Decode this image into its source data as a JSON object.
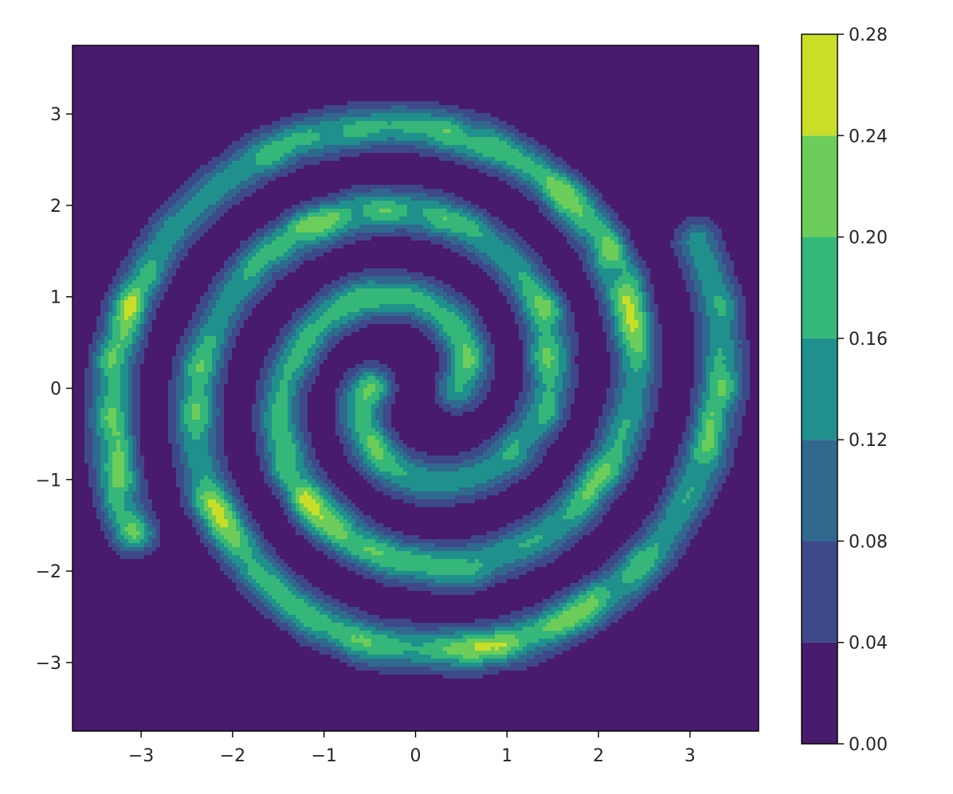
{
  "chart_data": {
    "type": "heatmap",
    "subtype": "filled-contour",
    "title": "",
    "xlabel": "",
    "ylabel": "",
    "xlim": [
      -3.75,
      3.75
    ],
    "ylim": [
      -3.75,
      3.75
    ],
    "x_ticks": [
      -3,
      -2,
      -1,
      0,
      1,
      2,
      3
    ],
    "x_tick_labels": [
      "−3",
      "−2",
      "−1",
      "0",
      "1",
      "2",
      "3"
    ],
    "y_ticks": [
      -3,
      -2,
      -1,
      0,
      1,
      2,
      3
    ],
    "y_tick_labels": [
      "−3",
      "−2",
      "−1",
      "0",
      "1",
      "2",
      "3"
    ],
    "grid": false,
    "colormap": "viridis",
    "colorbar": {
      "placement": "right",
      "levels": [
        0.0,
        0.04,
        0.08,
        0.12,
        0.16,
        0.2,
        0.24,
        0.28
      ],
      "tick_labels": [
        "0.00",
        "0.04",
        "0.08",
        "0.12",
        "0.16",
        "0.20",
        "0.24",
        "0.28"
      ],
      "colors": [
        "#481b6d",
        "#3e4989",
        "#30698e",
        "#20908d",
        "#35b779",
        "#6ccd5a",
        "#c9df27"
      ]
    },
    "density": {
      "description_shape": "two-armed spiral",
      "arms": [
        {
          "name": "",
          "theta_start": 0.0,
          "theta_end": 9.9,
          "spiral_a": 0.5,
          "spiral_b": 0.3,
          "rotation": 0.0
        },
        {
          "name": "",
          "theta_start": 0.0,
          "theta_end": 9.9,
          "spiral_a": 0.5,
          "spiral_b": 0.3,
          "rotation": 3.14159
        }
      ],
      "peak_value": 0.26,
      "background_value": 0.0
    }
  }
}
